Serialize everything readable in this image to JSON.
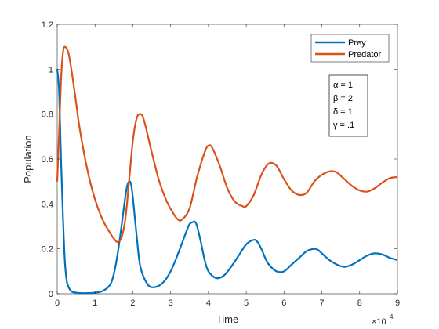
{
  "chart_data": {
    "type": "line",
    "xlabel": "Time",
    "ylabel": "Population",
    "x_exponent_label": "×10",
    "x_exponent_power": "4",
    "xlim": [
      0,
      9
    ],
    "ylim": [
      0,
      1.2
    ],
    "xticks": [
      0,
      1,
      2,
      3,
      4,
      5,
      6,
      7,
      8,
      9
    ],
    "xtick_labels": [
      "0",
      "1",
      "2",
      "3",
      "4",
      "5",
      "6",
      "7",
      "8",
      "9"
    ],
    "yticks": [
      0,
      0.2,
      0.4,
      0.6,
      0.8,
      1,
      1.2
    ],
    "ytick_labels": [
      "0",
      "0.2",
      "0.4",
      "0.6",
      "0.8",
      "1",
      "1.2"
    ],
    "grid": false,
    "legend_placement": "top-right",
    "series": [
      {
        "name": "Prey",
        "color": "#0072BD",
        "x": [
          0,
          0.05,
          0.1,
          0.15,
          0.2,
          0.25,
          0.3,
          0.35,
          0.4,
          0.5,
          0.6,
          0.8,
          1.0,
          1.2,
          1.4,
          1.5,
          1.6,
          1.7,
          1.8,
          1.85,
          1.9,
          1.95,
          2.0,
          2.1,
          2.2,
          2.4,
          2.6,
          2.8,
          3.0,
          3.2,
          3.4,
          3.5,
          3.6,
          3.65,
          3.7,
          3.8,
          3.9,
          4.0,
          4.2,
          4.4,
          4.6,
          4.8,
          5.0,
          5.2,
          5.3,
          5.4,
          5.5,
          5.6,
          5.8,
          6.0,
          6.2,
          6.4,
          6.6,
          6.8,
          6.9,
          7.0,
          7.2,
          7.4,
          7.6,
          7.8,
          8.0,
          8.2,
          8.4,
          8.6,
          8.8,
          9.0
        ],
        "values": [
          1.0,
          0.9,
          0.6,
          0.35,
          0.15,
          0.06,
          0.03,
          0.015,
          0.008,
          0.005,
          0.003,
          0.003,
          0.005,
          0.012,
          0.04,
          0.09,
          0.18,
          0.3,
          0.43,
          0.48,
          0.5,
          0.49,
          0.43,
          0.26,
          0.12,
          0.04,
          0.03,
          0.05,
          0.1,
          0.18,
          0.27,
          0.31,
          0.32,
          0.32,
          0.3,
          0.23,
          0.15,
          0.1,
          0.07,
          0.08,
          0.12,
          0.17,
          0.22,
          0.24,
          0.23,
          0.2,
          0.16,
          0.13,
          0.1,
          0.1,
          0.13,
          0.16,
          0.19,
          0.2,
          0.195,
          0.18,
          0.15,
          0.13,
          0.12,
          0.13,
          0.15,
          0.17,
          0.18,
          0.175,
          0.16,
          0.15
        ]
      },
      {
        "name": "Predator",
        "color": "#D95319",
        "x": [
          0,
          0.05,
          0.1,
          0.15,
          0.2,
          0.3,
          0.4,
          0.5,
          0.6,
          0.8,
          1.0,
          1.2,
          1.4,
          1.5,
          1.6,
          1.7,
          1.8,
          1.9,
          2.0,
          2.1,
          2.2,
          2.3,
          2.5,
          2.7,
          2.9,
          3.1,
          3.2,
          3.3,
          3.5,
          3.7,
          3.9,
          4.0,
          4.1,
          4.3,
          4.5,
          4.7,
          4.9,
          5.0,
          5.2,
          5.4,
          5.6,
          5.8,
          6.0,
          6.2,
          6.4,
          6.6,
          6.8,
          7.0,
          7.2,
          7.3,
          7.4,
          7.6,
          7.8,
          8.0,
          8.2,
          8.4,
          8.6,
          8.8,
          9.0
        ],
        "values": [
          0.5,
          0.72,
          0.95,
          1.07,
          1.1,
          1.07,
          0.97,
          0.85,
          0.73,
          0.55,
          0.42,
          0.33,
          0.27,
          0.245,
          0.23,
          0.25,
          0.33,
          0.5,
          0.68,
          0.78,
          0.8,
          0.77,
          0.63,
          0.5,
          0.41,
          0.35,
          0.33,
          0.33,
          0.38,
          0.52,
          0.63,
          0.66,
          0.65,
          0.57,
          0.47,
          0.41,
          0.39,
          0.39,
          0.44,
          0.53,
          0.58,
          0.57,
          0.51,
          0.46,
          0.44,
          0.45,
          0.5,
          0.53,
          0.545,
          0.545,
          0.54,
          0.51,
          0.48,
          0.46,
          0.455,
          0.47,
          0.495,
          0.515,
          0.52
        ]
      }
    ],
    "annotation": [
      "α = 1",
      "β = 2",
      "δ = 1",
      "γ = .1"
    ]
  }
}
